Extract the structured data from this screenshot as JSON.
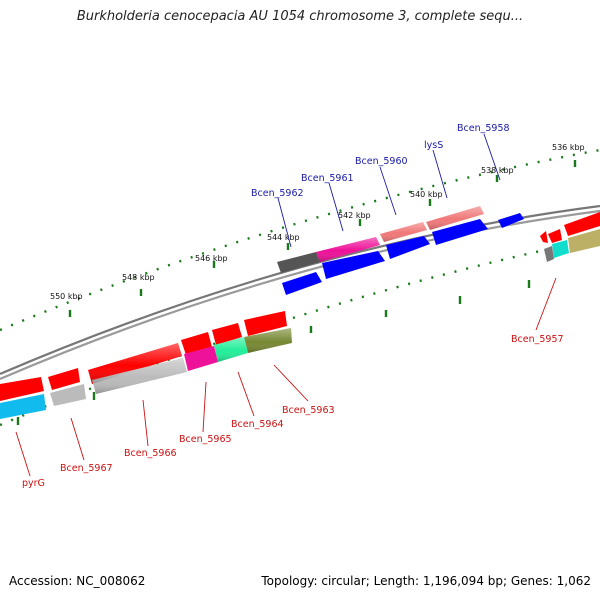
{
  "title": "Burkholderia cenocepacia AU 1054 chromosome 3, complete sequ...",
  "footer": {
    "accession": "Accession: NC_008062",
    "summary": "Topology: circular; Length: 1,196,094 bp; Genes: 1,062"
  },
  "scale_labels": [
    "536 kbp",
    "538 kbp",
    "540 kbp",
    "542 kbp",
    "544 kbp",
    "546 kbp",
    "548 kbp",
    "550 kbp"
  ],
  "top_gene_labels": [
    "Bcen_5958",
    "lysS",
    "Bcen_5960",
    "Bcen_5961",
    "Bcen_5962"
  ],
  "bottom_gene_labels": [
    "Bcen_5957",
    "Bcen_5963",
    "Bcen_5964",
    "Bcen_5965",
    "Bcen_5966",
    "Bcen_5967",
    "pyrG"
  ],
  "colors": {
    "backbone": "#888888",
    "tick": "#1a7a1a",
    "top_label": "#1a1aa8",
    "bottom_label": "#cc1111",
    "red": "#ff0000",
    "blue": "#0000ff",
    "pink": "#f07878",
    "magenta": "#ee1199",
    "dark_gray": "#555555",
    "light_gray": "#bbbbbb",
    "cyan": "#11bbee",
    "aqua": "#11ddcc",
    "green_mint": "#22ee99",
    "olive": "#778833",
    "khaki": "#bbb066"
  }
}
